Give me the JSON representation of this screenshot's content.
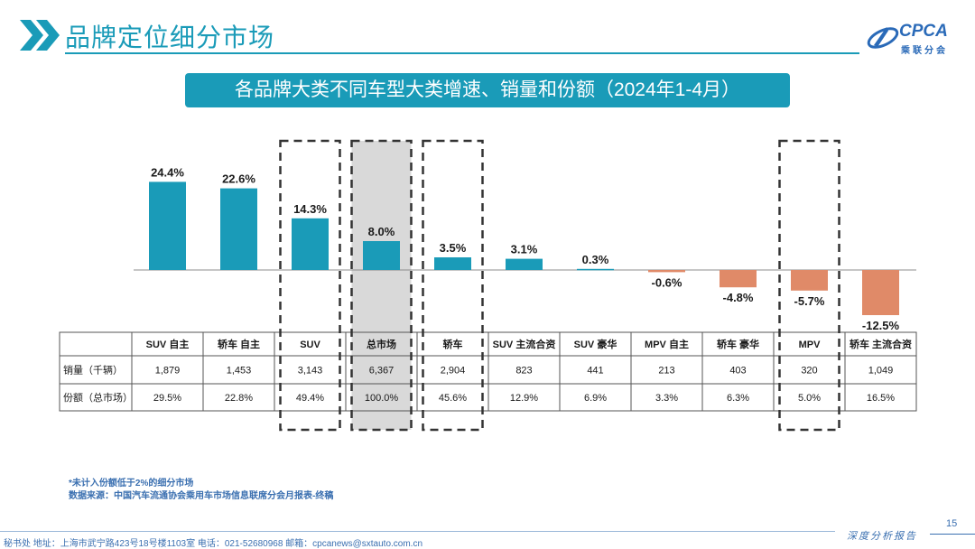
{
  "page_title": "品牌定位细分市场",
  "logo": {
    "text": "CPCA",
    "cn": "乘联分会",
    "icon": "cpca-logo-icon"
  },
  "banner_title": "各品牌大类不同车型大类增速、销量和份额（2024年1-4月）",
  "colors": {
    "positive": "#1a9bb8",
    "negative": "#e08a68",
    "highlight_fill": "#d9d9d9",
    "accent": "#1a9bb8"
  },
  "chart_data": {
    "type": "bar",
    "title": "各品牌大类不同车型大类增速、销量和份额（2024年1-4月）",
    "categories": [
      "SUV 自主",
      "轿车 自主",
      "SUV",
      "总市场",
      "轿车",
      "SUV 主流合资",
      "SUV 豪华",
      "MPV 自主",
      "轿车 豪华",
      "MPV",
      "轿车 主流合资"
    ],
    "values": [
      24.4,
      22.6,
      14.3,
      8.0,
      3.5,
      3.1,
      0.3,
      -0.6,
      -4.8,
      -5.7,
      -12.5
    ],
    "value_labels": [
      "24.4%",
      "22.6%",
      "14.3%",
      "8.0%",
      "3.5%",
      "3.1%",
      "0.3%",
      "-0.6%",
      "-4.8%",
      "-5.7%",
      "-12.5%"
    ],
    "highlighted": [
      "SUV",
      "总市场",
      "轿车",
      "MPV"
    ],
    "shaded": [
      "总市场"
    ],
    "ylim": [
      -13,
      26
    ],
    "grid": false,
    "legend": "none",
    "table": {
      "rows": [
        {
          "label": "销量（千辆）",
          "values": [
            "1,879",
            "1,453",
            "3,143",
            "6,367",
            "2,904",
            "823",
            "441",
            "213",
            "403",
            "320",
            "1,049"
          ]
        },
        {
          "label": "份额（总市场）",
          "values": [
            "29.5%",
            "22.8%",
            "49.4%",
            "100.0%",
            "45.6%",
            "12.9%",
            "6.9%",
            "3.3%",
            "6.3%",
            "5.0%",
            "16.5%"
          ]
        }
      ]
    }
  },
  "footnotes": [
    "*未计入份额低于2%的细分市场",
    "数据来源：中国汽车流通协会乘用车市场信息联席分会月报表-终稿"
  ],
  "footer": "秘书处   地址：上海市武宁路423号18号楼1103室    电话：021-52680968    邮箱：cpcanews@sxtauto.com.cn",
  "report_label": "深度分析报告",
  "page_number": "15"
}
